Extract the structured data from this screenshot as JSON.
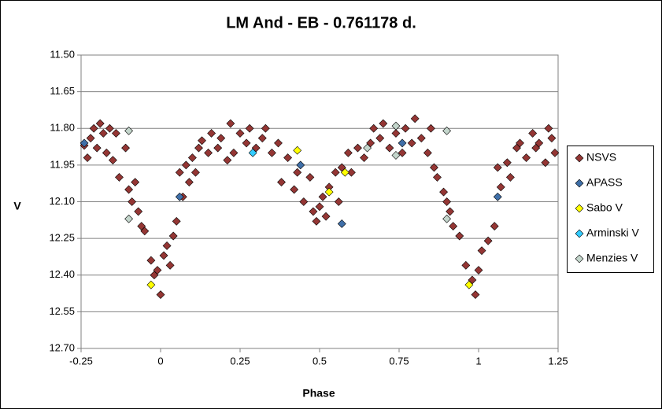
{
  "chart_data": {
    "type": "scatter",
    "title": "LM And - EB - 0.761178  d.",
    "x_label": "Phase",
    "y_label": "V",
    "xlim": [
      -0.25,
      1.25
    ],
    "xticks": [
      -0.25,
      0,
      0.25,
      0.5,
      0.75,
      1,
      1.25
    ],
    "ylim": [
      11.5,
      12.7
    ],
    "y_inverted": true,
    "yticks": [
      {
        "value": 11.5,
        "label": "11.50"
      },
      {
        "value": 11.65,
        "label": "11.65"
      },
      {
        "value": 11.8,
        "label": "11.80"
      },
      {
        "value": 11.95,
        "label": "11.95"
      },
      {
        "value": 12.1,
        "label": "12.10"
      },
      {
        "value": 12.25,
        "label": "12.25"
      },
      {
        "value": 12.4,
        "label": "12.40"
      },
      {
        "value": 12.55,
        "label": "12.55"
      },
      {
        "value": 12.7,
        "label": "12.70"
      }
    ],
    "grid": true,
    "legend": "right",
    "series": [
      {
        "name": "NSVS",
        "color": "#943634",
        "x": [
          -0.24,
          -0.23,
          -0.22,
          -0.21,
          -0.2,
          -0.19,
          -0.18,
          -0.17,
          -0.16,
          -0.15,
          -0.14,
          -0.13,
          -0.11,
          -0.1,
          -0.09,
          -0.08,
          -0.07,
          -0.06,
          -0.05,
          -0.03,
          -0.02,
          -0.01,
          0,
          0.01,
          0.02,
          0.03,
          0.04,
          0.05,
          0.06,
          0.07,
          0.08,
          0.09,
          0.1,
          0.11,
          0.12,
          0.13,
          0.15,
          0.16,
          0.18,
          0.19,
          0.21,
          0.22,
          0.23,
          0.25,
          0.27,
          0.28,
          0.3,
          0.32,
          0.33,
          0.35,
          0.37,
          0.38,
          0.4,
          0.42,
          0.43,
          0.45,
          0.47,
          0.48,
          0.49,
          0.5,
          0.51,
          0.52,
          0.53,
          0.55,
          0.56,
          0.57,
          0.59,
          0.6,
          0.62,
          0.64,
          0.66,
          0.67,
          0.69,
          0.7,
          0.72,
          0.74,
          0.76,
          0.77,
          0.79,
          0.8,
          0.82,
          0.84,
          0.85,
          0.86,
          0.87,
          0.89,
          0.9,
          0.91,
          0.92,
          0.94,
          0.96,
          0.98,
          0.99,
          1,
          1.01,
          1.03,
          1.05,
          1.06,
          1.07,
          1.09,
          1.1,
          1.12,
          1.13,
          1.15,
          1.17,
          1.18,
          1.19,
          1.21,
          1.22,
          1.23,
          1.24
        ],
        "values": [
          11.87,
          11.92,
          11.84,
          11.8,
          11.88,
          11.78,
          11.82,
          11.9,
          11.8,
          11.93,
          11.82,
          12,
          11.88,
          12.05,
          12.1,
          12.02,
          12.14,
          12.2,
          12.22,
          12.34,
          12.4,
          12.38,
          12.48,
          12.32,
          12.28,
          12.36,
          12.24,
          12.18,
          11.98,
          12.08,
          11.95,
          12.02,
          11.92,
          11.98,
          11.88,
          11.85,
          11.9,
          11.82,
          11.88,
          11.84,
          11.93,
          11.78,
          11.9,
          11.82,
          11.86,
          11.8,
          11.88,
          11.84,
          11.8,
          11.9,
          11.86,
          12.02,
          11.92,
          12.05,
          11.98,
          12.1,
          12,
          12.14,
          12.18,
          12.12,
          12.08,
          12.16,
          12.04,
          11.98,
          12.1,
          11.96,
          11.9,
          11.98,
          11.88,
          11.92,
          11.86,
          11.8,
          11.84,
          11.78,
          11.88,
          11.82,
          11.9,
          11.8,
          11.86,
          11.76,
          11.84,
          11.9,
          11.8,
          11.96,
          12,
          12.06,
          12.1,
          12.14,
          12.2,
          12.24,
          12.36,
          12.42,
          12.48,
          12.38,
          12.3,
          12.26,
          12.2,
          11.96,
          12.04,
          11.94,
          12,
          11.88,
          11.86,
          11.92,
          11.82,
          11.88,
          11.86,
          11.94,
          11.8,
          11.84,
          11.9
        ]
      },
      {
        "name": "APASS",
        "color": "#3f6fa8",
        "x": [
          -0.24,
          0.06,
          0.44,
          0.57,
          0.76,
          1.06
        ],
        "values": [
          11.86,
          12.08,
          11.95,
          12.19,
          11.86,
          12.08
        ]
      },
      {
        "name": "Sabo V",
        "color": "#ffff00",
        "x": [
          -0.03,
          0.43,
          0.53,
          0.58,
          0.97
        ],
        "values": [
          12.44,
          11.89,
          12.06,
          11.98,
          12.44
        ]
      },
      {
        "name": "Arminski V",
        "color": "#33ccff",
        "x": [
          0.29
        ],
        "values": [
          11.9
        ]
      },
      {
        "name": "Menzies V",
        "color": "#c4d6cc",
        "x": [
          -0.1,
          -0.1,
          0.65,
          0.74,
          0.74,
          0.9,
          0.9
        ],
        "values": [
          11.81,
          12.17,
          11.88,
          11.79,
          11.91,
          11.81,
          12.17
        ]
      }
    ]
  }
}
